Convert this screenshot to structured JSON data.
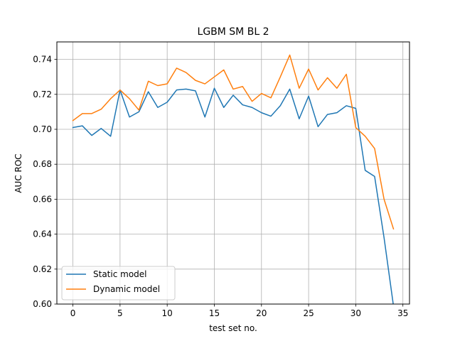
{
  "chart_data": {
    "type": "line",
    "title": "LGBM SM BL 2",
    "xlabel": "test set no.",
    "ylabel": "AUC ROC",
    "xlim": [
      -1.7,
      35.7
    ],
    "ylim": [
      0.6,
      0.75
    ],
    "xticks": [
      0,
      5,
      10,
      15,
      20,
      25,
      30,
      35
    ],
    "xtick_labels": [
      "0",
      "5",
      "10",
      "15",
      "20",
      "25",
      "30",
      "35"
    ],
    "yticks": [
      0.6,
      0.62,
      0.64,
      0.66,
      0.68,
      0.7,
      0.72,
      0.74
    ],
    "ytick_labels": [
      "0.60",
      "0.62",
      "0.64",
      "0.66",
      "0.68",
      "0.70",
      "0.72",
      "0.74"
    ],
    "grid": true,
    "legend_position": "lower-left",
    "x": [
      0,
      1,
      2,
      3,
      4,
      5,
      6,
      7,
      8,
      9,
      10,
      11,
      12,
      13,
      14,
      15,
      16,
      17,
      18,
      19,
      20,
      21,
      22,
      23,
      24,
      25,
      26,
      27,
      28,
      29,
      30,
      31,
      32,
      33,
      34
    ],
    "series": [
      {
        "name": "Static model",
        "color": "#1f77b4",
        "values": [
          0.701,
          0.702,
          0.6965,
          0.7005,
          0.696,
          0.7225,
          0.707,
          0.71,
          0.7215,
          0.7125,
          0.7155,
          0.7225,
          0.723,
          0.722,
          0.707,
          0.7235,
          0.7125,
          0.7195,
          0.714,
          0.7125,
          0.7095,
          0.7075,
          0.7135,
          0.723,
          0.706,
          0.719,
          0.7015,
          0.7085,
          0.7095,
          0.7135,
          0.712,
          0.6765,
          0.673,
          0.638,
          0.599
        ]
      },
      {
        "name": "Dynamic model",
        "color": "#ff7f0e",
        "values": [
          0.705,
          0.709,
          0.709,
          0.7115,
          0.7175,
          0.7225,
          0.7175,
          0.711,
          0.7275,
          0.725,
          0.726,
          0.735,
          0.7325,
          0.728,
          0.726,
          0.73,
          0.734,
          0.723,
          0.7245,
          0.716,
          0.7205,
          0.718,
          0.73,
          0.7425,
          0.7235,
          0.7345,
          0.7225,
          0.7295,
          0.7235,
          0.7315,
          0.701,
          0.696,
          0.689,
          0.66,
          0.643
        ]
      }
    ]
  }
}
